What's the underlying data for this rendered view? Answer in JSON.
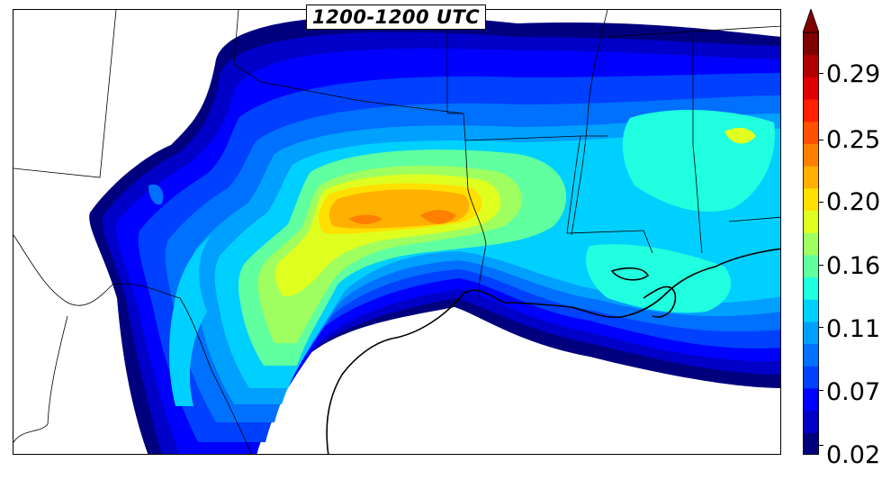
{
  "title": "1200-1200 UTC",
  "colorbar": {
    "colors": [
      "#00007f",
      "#0000c8",
      "#0000ff",
      "#0040ff",
      "#0070ff",
      "#00a0ff",
      "#00d0ff",
      "#20ffdf",
      "#60ff9f",
      "#9fff60",
      "#dfff20",
      "#ffe000",
      "#ffb000",
      "#ff8000",
      "#ff5000",
      "#ff2000",
      "#e00000",
      "#b00000",
      "#7f0000"
    ],
    "tick_labels": [
      "0.02",
      "0.07",
      "0.11",
      "0.16",
      "0.20",
      "0.25",
      "0.29"
    ]
  }
}
